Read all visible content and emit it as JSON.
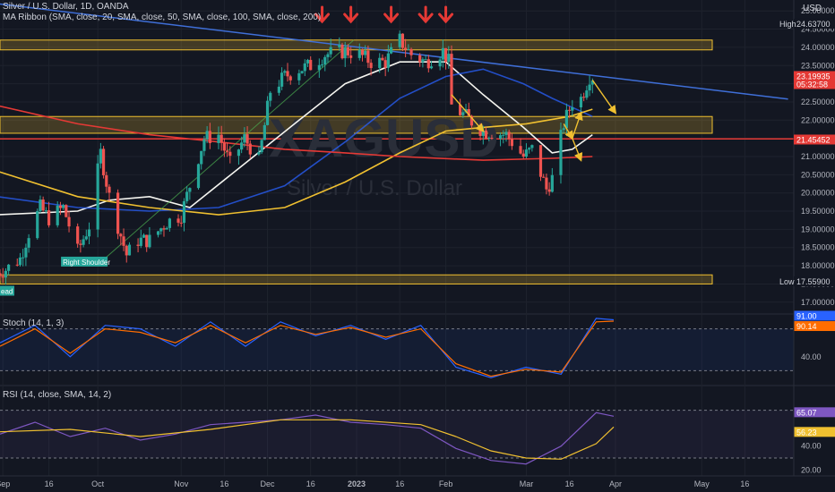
{
  "header": {
    "symbol_line": "Silver / U.S. Dollar, 1D, OANDA",
    "ma_ribbon": "MA Ribbon (SMA, close, 20, SMA, close, 50, SMA, close, 100, SMA, close, 200)",
    "stoch": "Stoch (14, 1, 3)",
    "rsi": "RSI (14, close, SMA, 14, 2)",
    "currency": "USD"
  },
  "watermark": {
    "ticker": "XAGUSD",
    "name": "Silver / U.S. Dollar"
  },
  "price_tags": {
    "high_label": "High",
    "high_value": "24.63700",
    "low_label": "Low",
    "low_value": "17.55900",
    "last_value": "23.19935",
    "countdown": "05:32:58",
    "ma200_value": "21.45452"
  },
  "annotations": {
    "pattern_label": "Right Shoulder",
    "left_label": "ead"
  },
  "colors": {
    "background": "#131722",
    "up": "#26a69a",
    "down": "#ef5350",
    "ma20": "#f5f5f0",
    "ma50": "#2962ff",
    "ma100": "#f0c030",
    "ma200": "#e53935",
    "zone": "#f0c030",
    "trendline": "#3f6fd8",
    "stoch_k": "#2962ff",
    "stoch_d": "#ff6d00",
    "rsi": "#7e57c2",
    "rsi_ma": "#f0c030",
    "arrow": "#e53935"
  },
  "chart_data": [
    {
      "type": "candlestick",
      "title": "Silver / U.S. Dollar, 1D, OANDA",
      "ylabel": "USD",
      "ylim": [
        16.7,
        25.3
      ],
      "yticks": [
        17.0,
        17.5,
        18.0,
        18.5,
        19.0,
        19.5,
        20.0,
        20.5,
        21.0,
        21.5,
        22.0,
        22.5,
        23.0,
        23.5,
        24.0,
        24.5,
        25.0
      ],
      "x_ticks": [
        "Sep",
        "16",
        "Oct",
        "Nov",
        "16",
        "Dec",
        "16",
        "2023",
        "16",
        "Feb",
        "Mar",
        "16",
        "Apr",
        "May",
        "16"
      ],
      "price_path": [
        [
          "2022-08-29",
          17.8
        ],
        [
          "2022-09-01",
          17.9
        ],
        [
          "2022-09-06",
          18.2
        ],
        [
          "2022-09-09",
          18.9
        ],
        [
          "2022-09-13",
          19.6
        ],
        [
          "2022-09-16",
          19.3
        ],
        [
          "2022-09-21",
          19.6
        ],
        [
          "2022-09-26",
          18.4
        ],
        [
          "2022-09-30",
          19.1
        ],
        [
          "2022-10-04",
          21.1
        ],
        [
          "2022-10-07",
          19.9
        ],
        [
          "2022-10-13",
          18.3
        ],
        [
          "2022-10-17",
          18.7
        ],
        [
          "2022-10-21",
          18.7
        ],
        [
          "2022-10-27",
          19.2
        ],
        [
          "2022-11-01",
          19.4
        ],
        [
          "2022-11-04",
          20.2
        ],
        [
          "2022-11-09",
          21.5
        ],
        [
          "2022-11-14",
          21.6
        ],
        [
          "2022-11-18",
          20.8
        ],
        [
          "2022-11-23",
          21.5
        ],
        [
          "2022-11-28",
          20.9
        ],
        [
          "2022-12-02",
          22.8
        ],
        [
          "2022-12-07",
          23.2
        ],
        [
          "2022-12-12",
          23.4
        ],
        [
          "2022-12-16",
          23.5
        ],
        [
          "2022-12-21",
          23.8
        ],
        [
          "2022-12-28",
          23.9
        ],
        [
          "2023-01-02",
          23.8
        ],
        [
          "2023-01-06",
          23.6
        ],
        [
          "2023-01-11",
          23.6
        ],
        [
          "2023-01-16",
          24.2
        ],
        [
          "2023-01-20",
          23.8
        ],
        [
          "2023-01-25",
          23.6
        ],
        [
          "2023-01-31",
          23.9
        ],
        [
          "2023-02-02",
          23.6
        ],
        [
          "2023-02-03",
          22.4
        ],
        [
          "2023-02-08",
          22.1
        ],
        [
          "2023-02-14",
          21.7
        ],
        [
          "2023-02-22",
          21.6
        ],
        [
          "2023-02-28",
          21.0
        ],
        [
          "2023-03-03",
          21.2
        ],
        [
          "2023-03-08",
          20.1
        ],
        [
          "2023-03-10",
          20.4
        ],
        [
          "2023-03-14",
          21.9
        ],
        [
          "2023-03-17",
          22.5
        ],
        [
          "2023-03-20",
          22.6
        ],
        [
          "2023-03-23",
          23.2
        ],
        [
          "2023-03-24",
          23.2
        ]
      ],
      "moving_averages": [
        {
          "name": "SMA 20",
          "path": [
            [
              "2022-08-29",
              19.4
            ],
            [
              "2022-09-26",
              19.5
            ],
            [
              "2022-10-07",
              19.8
            ],
            [
              "2022-10-21",
              19.9
            ],
            [
              "2022-11-04",
              19.6
            ],
            [
              "2022-11-23",
              20.8
            ],
            [
              "2022-12-12",
              22.0
            ],
            [
              "2022-12-28",
              23.0
            ],
            [
              "2023-01-16",
              23.6
            ],
            [
              "2023-02-01",
              23.6
            ],
            [
              "2023-02-14",
              22.7
            ],
            [
              "2023-02-28",
              21.8
            ],
            [
              "2023-03-10",
              21.1
            ],
            [
              "2023-03-17",
              21.2
            ],
            [
              "2023-03-24",
              21.6
            ]
          ]
        },
        {
          "name": "SMA 50",
          "path": [
            [
              "2022-08-29",
              19.9
            ],
            [
              "2022-09-26",
              19.6
            ],
            [
              "2022-10-21",
              19.5
            ],
            [
              "2022-11-14",
              19.6
            ],
            [
              "2022-12-07",
              20.2
            ],
            [
              "2022-12-28",
              21.4
            ],
            [
              "2023-01-16",
              22.6
            ],
            [
              "2023-02-01",
              23.2
            ],
            [
              "2023-02-14",
              23.4
            ],
            [
              "2023-02-28",
              23.0
            ],
            [
              "2023-03-10",
              22.6
            ],
            [
              "2023-03-24",
              22.1
            ]
          ]
        },
        {
          "name": "SMA 100",
          "path": [
            [
              "2022-08-29",
              20.6
            ],
            [
              "2022-09-26",
              19.9
            ],
            [
              "2022-10-21",
              19.6
            ],
            [
              "2022-11-14",
              19.4
            ],
            [
              "2022-12-07",
              19.6
            ],
            [
              "2022-12-28",
              20.3
            ],
            [
              "2023-01-16",
              21.1
            ],
            [
              "2023-02-01",
              21.7
            ],
            [
              "2023-02-14",
              21.8
            ],
            [
              "2023-03-01",
              21.9
            ],
            [
              "2023-03-16",
              22.1
            ],
            [
              "2023-03-24",
              22.3
            ]
          ]
        },
        {
          "name": "SMA 200",
          "path": [
            [
              "2022-08-29",
              22.4
            ],
            [
              "2022-09-26",
              21.9
            ],
            [
              "2022-10-21",
              21.6
            ],
            [
              "2022-11-14",
              21.4
            ],
            [
              "2022-12-07",
              21.2
            ],
            [
              "2022-12-28",
              21.1
            ],
            [
              "2023-01-16",
              21.0
            ],
            [
              "2023-02-14",
              20.9
            ],
            [
              "2023-03-10",
              20.95
            ],
            [
              "2023-03-24",
              21.0
            ]
          ]
        }
      ],
      "zones": [
        [
          23.93,
          24.2
        ],
        [
          21.64,
          22.1
        ],
        [
          21.45,
          21.52
        ],
        [
          17.5,
          17.75
        ]
      ],
      "trendlines": [
        {
          "from": [
            "2022-08-29",
            25.2
          ],
          "to": [
            "2023-05-31",
            22.58
          ]
        },
        {
          "from": [
            "2022-10-04",
            18.1
          ],
          "to": [
            "2022-12-31",
            24.2
          ]
        }
      ],
      "forecast_arrows": [
        {
          "from": [
            "2023-03-24",
            23.1
          ],
          "to": [
            "2023-04-01",
            22.2
          ]
        },
        {
          "from": [
            "2023-03-14",
            21.9
          ],
          "to": [
            "2023-03-17",
            21.5
          ]
        },
        {
          "from": [
            "2023-03-17",
            21.5
          ],
          "to": [
            "2023-03-20",
            22.2
          ]
        },
        {
          "from": [
            "2023-03-17",
            21.5
          ],
          "to": [
            "2023-03-20",
            20.9
          ]
        },
        {
          "from": [
            "2023-02-03",
            22.7
          ],
          "to": [
            "2023-02-14",
            21.7
          ]
        }
      ],
      "top_markers": [
        "2022-12-20",
        "2022-12-30",
        "2023-01-13",
        "2023-01-25",
        "2023-02-01"
      ]
    },
    {
      "type": "line",
      "title": "Stoch (14, 1, 3)",
      "ylim": [
        0,
        100
      ],
      "yticks": [
        40.0
      ],
      "bands": [
        20,
        80
      ],
      "series": [
        {
          "name": "%K",
          "value_label": "91.00",
          "values": [
            [
              0,
              60
            ],
            [
              10,
              85
            ],
            [
              20,
              40
            ],
            [
              30,
              85
            ],
            [
              40,
              80
            ],
            [
              50,
              55
            ],
            [
              60,
              90
            ],
            [
              70,
              55
            ],
            [
              80,
              90
            ],
            [
              90,
              70
            ],
            [
              100,
              85
            ],
            [
              110,
              65
            ],
            [
              120,
              85
            ],
            [
              130,
              25
            ],
            [
              140,
              10
            ],
            [
              150,
              25
            ],
            [
              160,
              15
            ],
            [
              170,
              95
            ],
            [
              175,
              93
            ]
          ]
        },
        {
          "name": "%D",
          "value_label": "90.14",
          "values": [
            [
              0,
              55
            ],
            [
              10,
              80
            ],
            [
              20,
              45
            ],
            [
              30,
              80
            ],
            [
              40,
              75
            ],
            [
              50,
              60
            ],
            [
              60,
              85
            ],
            [
              70,
              60
            ],
            [
              80,
              85
            ],
            [
              90,
              72
            ],
            [
              100,
              82
            ],
            [
              110,
              68
            ],
            [
              120,
              80
            ],
            [
              130,
              30
            ],
            [
              140,
              12
            ],
            [
              150,
              22
            ],
            [
              160,
              18
            ],
            [
              170,
              90
            ],
            [
              175,
              91
            ]
          ]
        }
      ]
    },
    {
      "type": "line",
      "title": "RSI (14, close, SMA, 14, 2)",
      "ylim": [
        15,
        90
      ],
      "yticks": [
        40.0,
        20.0
      ],
      "bands": [
        30,
        70
      ],
      "series": [
        {
          "name": "RSI",
          "value_label": "65.07",
          "values": [
            [
              0,
              50
            ],
            [
              10,
              60
            ],
            [
              20,
              48
            ],
            [
              30,
              55
            ],
            [
              40,
              45
            ],
            [
              50,
              50
            ],
            [
              60,
              58
            ],
            [
              70,
              60
            ],
            [
              80,
              62
            ],
            [
              90,
              66
            ],
            [
              100,
              60
            ],
            [
              110,
              58
            ],
            [
              120,
              55
            ],
            [
              130,
              38
            ],
            [
              140,
              28
            ],
            [
              150,
              25
            ],
            [
              160,
              40
            ],
            [
              170,
              68
            ],
            [
              175,
              65
            ]
          ]
        },
        {
          "name": "RSI MA",
          "value_label": "56.23",
          "values": [
            [
              0,
              52
            ],
            [
              20,
              54
            ],
            [
              40,
              48
            ],
            [
              60,
              54
            ],
            [
              80,
              62
            ],
            [
              100,
              62
            ],
            [
              120,
              58
            ],
            [
              130,
              48
            ],
            [
              140,
              36
            ],
            [
              150,
              30
            ],
            [
              160,
              29
            ],
            [
              170,
              42
            ],
            [
              175,
              56
            ]
          ]
        }
      ]
    }
  ]
}
